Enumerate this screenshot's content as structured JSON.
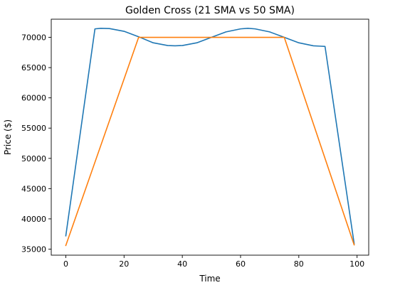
{
  "chart_data": {
    "type": "line",
    "title": "Golden Cross (21 SMA vs 50 SMA)",
    "xlabel": "Time",
    "ylabel": "Price ($)",
    "xlim": [
      -5,
      104
    ],
    "ylim": [
      34000,
      73000
    ],
    "xticks": [
      0,
      20,
      40,
      60,
      80,
      100
    ],
    "yticks": [
      35000,
      40000,
      45000,
      50000,
      55000,
      60000,
      65000,
      70000
    ],
    "grid": false,
    "series": [
      {
        "color": "#1f77b4",
        "x": [
          0,
          10,
          12,
          15,
          20,
          25,
          30,
          35,
          37.5,
          40,
          45,
          50,
          55,
          60,
          62.5,
          65,
          70,
          75,
          80,
          85,
          87,
          89,
          99
        ],
        "y": [
          37200,
          71400,
          71500,
          71450,
          71000,
          70100,
          69100,
          68650,
          68600,
          68650,
          69100,
          70000,
          70900,
          71400,
          71500,
          71400,
          70900,
          70000,
          69100,
          68600,
          68550,
          68500,
          35900
        ]
      },
      {
        "color": "#ff7f0e",
        "x": [
          0,
          25,
          75,
          99
        ],
        "y": [
          35600,
          70000,
          70000,
          35700
        ]
      }
    ]
  }
}
